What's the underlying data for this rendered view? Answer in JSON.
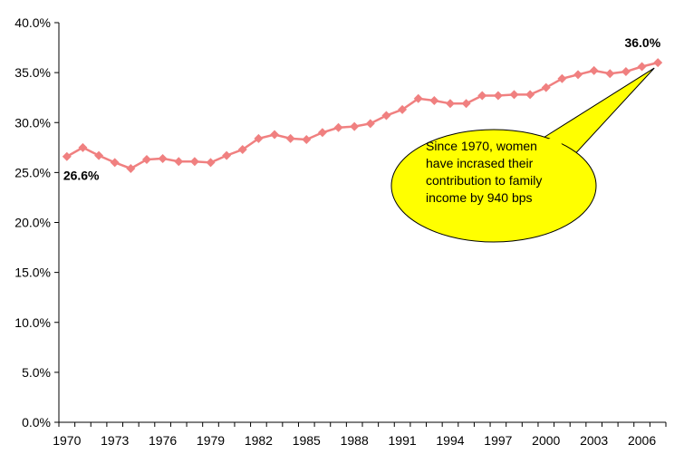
{
  "chart_data": {
    "type": "line",
    "title": "",
    "xlabel": "",
    "ylabel": "",
    "ylim": [
      0,
      40
    ],
    "y_ticks": [
      "0.0%",
      "5.0%",
      "10.0%",
      "15.0%",
      "20.0%",
      "25.0%",
      "30.0%",
      "35.0%",
      "40.0%"
    ],
    "x_tick_labels": [
      "1970",
      "1973",
      "1976",
      "1979",
      "1982",
      "1985",
      "1988",
      "1991",
      "1994",
      "1997",
      "2000",
      "2003",
      "2006"
    ],
    "x": [
      1970,
      1971,
      1972,
      1973,
      1974,
      1975,
      1976,
      1977,
      1978,
      1979,
      1980,
      1981,
      1982,
      1983,
      1984,
      1985,
      1986,
      1987,
      1988,
      1989,
      1990,
      1991,
      1992,
      1993,
      1994,
      1995,
      1996,
      1997,
      1998,
      1999,
      2000,
      2001,
      2002,
      2003,
      2004,
      2005,
      2006,
      2007
    ],
    "series": [
      {
        "name": "",
        "color": "#f08080",
        "marker": "diamond",
        "values": [
          26.6,
          27.5,
          26.7,
          26.0,
          25.4,
          26.3,
          26.4,
          26.1,
          26.1,
          26.0,
          26.7,
          27.3,
          28.4,
          28.8,
          28.4,
          28.3,
          29.0,
          29.5,
          29.6,
          29.9,
          30.7,
          31.3,
          32.4,
          32.2,
          31.9,
          31.9,
          32.7,
          32.7,
          32.8,
          32.8,
          33.5,
          34.4,
          34.8,
          35.2,
          34.9,
          35.1,
          35.6,
          36.0
        ]
      }
    ],
    "data_labels": [
      {
        "index": 0,
        "text": "26.6%"
      },
      {
        "index": 37,
        "text": "36.0%"
      }
    ],
    "annotation": {
      "text_lines": [
        "Since 1970, women",
        "have incrased their",
        "contribution to family",
        "income by 940 bps"
      ],
      "fill": "#ffff00",
      "points_to_index": 37
    },
    "grid": false,
    "legend": "none"
  }
}
